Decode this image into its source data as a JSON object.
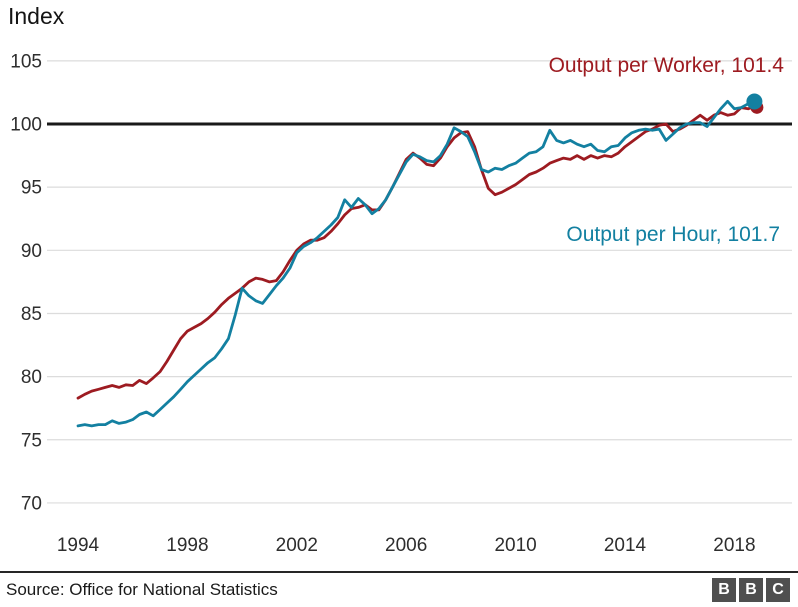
{
  "title": "Index",
  "footer": {
    "source": "Source: Office for National Statistics",
    "logo_letters": [
      "B",
      "B",
      "C"
    ]
  },
  "colors": {
    "worker_red": "#9d1b21",
    "hour_blue": "#1380a1",
    "baseline_black": "#1a1a1a",
    "grid_gray": "#dcdcdc",
    "axis_text": "#2e2e2e",
    "bbc_box_gray": "#4f4f4f"
  },
  "chart_data": {
    "type": "line",
    "title": "Index",
    "xlabel": "",
    "ylabel": "Index",
    "x_start": 1994,
    "x_end": 2018.75,
    "points_per_year": 4,
    "xticks": [
      1994,
      1998,
      2002,
      2006,
      2010,
      2014,
      2018
    ],
    "yticks": [
      105,
      100,
      95,
      90,
      85,
      80,
      75,
      70
    ],
    "ylim": [
      68,
      107
    ],
    "baseline_value": 100,
    "grid": "horizontal-only",
    "legend_position": "inline-labels",
    "series": [
      {
        "name": "Output per Worker",
        "label": "Output per Worker, 101.4",
        "final_value": 101.4,
        "color": "#9d1b21",
        "values": [
          78.3,
          78.6,
          78.85,
          79.0,
          79.15,
          79.3,
          79.15,
          79.35,
          79.3,
          79.7,
          79.45,
          79.9,
          80.4,
          81.2,
          82.1,
          83.0,
          83.6,
          83.9,
          84.2,
          84.6,
          85.1,
          85.7,
          86.2,
          86.6,
          87.0,
          87.5,
          87.8,
          87.7,
          87.5,
          87.6,
          88.3,
          89.2,
          90.0,
          90.5,
          90.8,
          90.8,
          91.0,
          91.5,
          92.1,
          92.8,
          93.3,
          93.4,
          93.6,
          93.2,
          93.2,
          94.0,
          95.0,
          96.1,
          97.2,
          97.7,
          97.3,
          96.8,
          96.7,
          97.3,
          98.2,
          98.9,
          99.3,
          99.4,
          98.2,
          96.4,
          94.9,
          94.4,
          94.6,
          94.9,
          95.2,
          95.6,
          96.0,
          96.2,
          96.5,
          96.9,
          97.1,
          97.3,
          97.2,
          97.5,
          97.2,
          97.5,
          97.3,
          97.5,
          97.4,
          97.7,
          98.2,
          98.6,
          99.0,
          99.4,
          99.6,
          99.9,
          100.0,
          99.4,
          99.6,
          99.9,
          100.3,
          100.7,
          100.3,
          100.7,
          100.9,
          100.7,
          100.8,
          101.3,
          101.2,
          101.4
        ]
      },
      {
        "name": "Output per Hour",
        "label": "Output per Hour, 101.7",
        "final_value": 101.7,
        "color": "#1380a1",
        "values": [
          76.1,
          76.2,
          76.1,
          76.2,
          76.2,
          76.5,
          76.3,
          76.4,
          76.6,
          77.0,
          77.2,
          76.9,
          77.4,
          77.9,
          78.4,
          79.0,
          79.6,
          80.1,
          80.6,
          81.1,
          81.5,
          82.2,
          83.0,
          84.9,
          87.0,
          86.4,
          86.0,
          85.8,
          86.5,
          87.2,
          87.8,
          88.6,
          89.8,
          90.3,
          90.6,
          91.0,
          91.5,
          92.0,
          92.6,
          94.0,
          93.4,
          94.1,
          93.6,
          92.9,
          93.3,
          94.0,
          95.0,
          96.0,
          97.0,
          97.6,
          97.4,
          97.1,
          97.0,
          97.5,
          98.4,
          99.7,
          99.4,
          99.0,
          97.8,
          96.4,
          96.2,
          96.5,
          96.4,
          96.7,
          96.9,
          97.3,
          97.7,
          97.8,
          98.2,
          99.5,
          98.7,
          98.5,
          98.7,
          98.4,
          98.2,
          98.4,
          97.9,
          97.8,
          98.2,
          98.3,
          98.9,
          99.3,
          99.5,
          99.6,
          99.5,
          99.6,
          98.7,
          99.2,
          99.7,
          100.0,
          100.1,
          100.1,
          99.8,
          100.5,
          101.2,
          101.8,
          101.2,
          101.3,
          101.6,
          101.7
        ]
      }
    ]
  }
}
